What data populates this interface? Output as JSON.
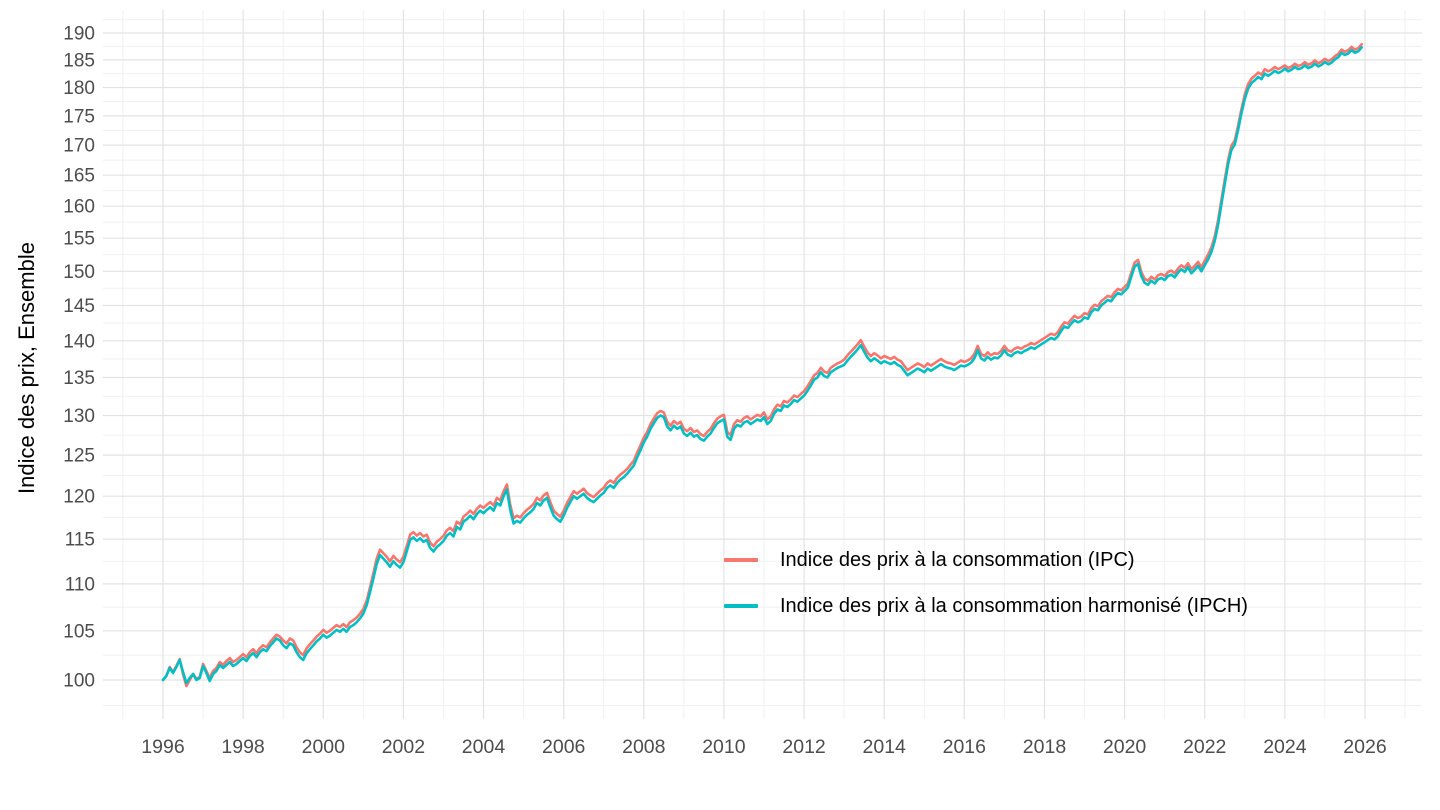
{
  "figure": {
    "y_axis_title": "Indice des prix, Ensemble",
    "colors": {
      "background": "#FFFFFF",
      "ipc": "#F8766D",
      "ipch": "#00BFC4",
      "grid_major": "#E3E3E3",
      "grid_minor": "#F1F1F1",
      "tick_label": "#4D4D4D",
      "axis_title": "#000000",
      "legend_text": "#000000"
    },
    "y_ticks": [
      100,
      105,
      110,
      115,
      120,
      125,
      130,
      135,
      140,
      145,
      150,
      155,
      160,
      165,
      170,
      175,
      180,
      185,
      190
    ],
    "x_ticks": [
      1996,
      1998,
      2000,
      2002,
      2004,
      2006,
      2008,
      2010,
      2012,
      2014,
      2016,
      2018,
      2020,
      2022,
      2024,
      2026
    ],
    "legend": {
      "items": [
        {
          "label": "Indice des prix à la consommation (IPC)",
          "color": "#F8766D"
        },
        {
          "label": "Indice des prix à la consommation harmonisé (IPCH)",
          "color": "#00BFC4"
        }
      ]
    }
  },
  "chart_data": {
    "type": "line",
    "title": "",
    "xlabel": "",
    "ylabel": "Indice des prix, Ensemble",
    "x_start_year": 1996,
    "x_frequency": "monthly",
    "x_range": [
      1996,
      2026
    ],
    "x_tick_step_years": 2,
    "y_scale": "log",
    "y_tick_values": [
      100,
      105,
      110,
      115,
      120,
      125,
      130,
      135,
      140,
      145,
      150,
      155,
      160,
      165,
      170,
      175,
      180,
      185,
      190
    ],
    "grid": "major-and-minor",
    "legend_position": "inside-center-right",
    "series": [
      {
        "name": "Indice des prix à la consommation (IPC)",
        "color": "#F8766D",
        "values": [
          100.0,
          100.4,
          101.3,
          100.8,
          101.4,
          102.1,
          100.6,
          99.4,
          100.0,
          100.6,
          100.1,
          100.3,
          101.6,
          100.9,
          100.2,
          100.9,
          101.2,
          101.8,
          101.5,
          101.9,
          102.2,
          101.8,
          102.0,
          102.3,
          102.6,
          102.3,
          102.8,
          103.1,
          102.7,
          103.2,
          103.5,
          103.3,
          103.8,
          104.2,
          104.6,
          104.4,
          104.0,
          103.7,
          104.2,
          104.0,
          103.3,
          102.8,
          102.5,
          103.2,
          103.6,
          104.0,
          104.4,
          104.7,
          105.1,
          104.8,
          105.0,
          105.3,
          105.6,
          105.4,
          105.7,
          105.4,
          105.9,
          106.1,
          106.4,
          106.8,
          107.3,
          108.2,
          109.6,
          111.2,
          112.8,
          113.8,
          113.4,
          113.0,
          112.5,
          113.1,
          112.7,
          112.4,
          113.0,
          114.2,
          115.5,
          115.8,
          115.4,
          115.7,
          115.3,
          115.5,
          114.6,
          114.2,
          114.7,
          115.0,
          115.4,
          116.0,
          116.3,
          115.9,
          117.0,
          116.7,
          117.6,
          117.9,
          118.3,
          117.9,
          118.5,
          118.9,
          118.6,
          119.0,
          119.3,
          118.9,
          119.8,
          119.5,
          120.6,
          121.4,
          119.0,
          117.4,
          117.7,
          117.5,
          118.0,
          118.4,
          118.7,
          119.1,
          119.8,
          119.5,
          120.1,
          120.4,
          119.3,
          118.3,
          117.9,
          117.6,
          118.3,
          119.2,
          119.9,
          120.6,
          120.3,
          120.6,
          120.9,
          120.4,
          120.1,
          119.9,
          120.3,
          120.7,
          121.0,
          121.6,
          121.9,
          121.6,
          122.2,
          122.6,
          122.9,
          123.3,
          123.8,
          124.3,
          125.3,
          126.2,
          127.2,
          127.9,
          128.9,
          129.6,
          130.3,
          130.6,
          130.4,
          129.2,
          128.7,
          129.3,
          128.9,
          129.2,
          128.3,
          128.0,
          128.4,
          127.9,
          128.1,
          127.6,
          127.4,
          127.9,
          128.3,
          129.0,
          129.6,
          129.9,
          130.1,
          127.9,
          127.5,
          128.9,
          129.4,
          129.2,
          129.7,
          129.9,
          129.5,
          129.8,
          130.1,
          129.9,
          130.4,
          129.5,
          129.9,
          130.8,
          131.4,
          131.2,
          131.9,
          131.7,
          132.1,
          132.6,
          132.4,
          132.8,
          133.2,
          133.8,
          134.5,
          135.3,
          135.6,
          136.3,
          135.8,
          135.6,
          136.3,
          136.6,
          136.9,
          137.1,
          137.4,
          138.0,
          138.5,
          139.0,
          139.5,
          140.1,
          139.2,
          138.4,
          137.9,
          138.3,
          138.0,
          137.6,
          137.9,
          137.7,
          137.5,
          137.8,
          137.4,
          137.2,
          136.6,
          136.0,
          136.3,
          136.6,
          136.9,
          136.7,
          136.4,
          136.9,
          136.6,
          136.9,
          137.2,
          137.5,
          137.2,
          137.0,
          136.9,
          136.7,
          137.0,
          137.3,
          137.1,
          137.3,
          137.6,
          138.2,
          139.3,
          138.2,
          137.9,
          138.4,
          138.0,
          138.3,
          138.2,
          138.6,
          139.3,
          138.7,
          138.5,
          138.9,
          139.1,
          138.9,
          139.2,
          139.4,
          139.7,
          139.5,
          139.8,
          140.1,
          140.4,
          140.7,
          141.0,
          140.8,
          141.2,
          142.0,
          142.6,
          142.4,
          143.0,
          143.5,
          143.2,
          143.4,
          143.9,
          143.7,
          144.6,
          145.1,
          144.9,
          145.6,
          146.0,
          146.4,
          146.2,
          146.9,
          147.4,
          147.2,
          147.7,
          148.2,
          149.8,
          151.3,
          151.7,
          149.9,
          148.9,
          148.6,
          149.2,
          148.8,
          149.4,
          149.6,
          149.3,
          149.9,
          150.1,
          149.7,
          150.4,
          150.9,
          150.5,
          151.2,
          150.3,
          150.8,
          151.4,
          150.6,
          151.6,
          152.5,
          153.6,
          155.3,
          157.8,
          161.0,
          164.3,
          167.5,
          169.9,
          170.8,
          173.3,
          176.2,
          178.8,
          180.6,
          181.6,
          182.1,
          182.7,
          182.3,
          183.3,
          182.9,
          183.2,
          183.7,
          183.3,
          183.6,
          184.0,
          183.5,
          183.8,
          184.3,
          183.9,
          184.1,
          184.6,
          184.1,
          184.4,
          184.9,
          184.4,
          184.7,
          185.2,
          184.8,
          185.1,
          185.7,
          186.1,
          186.9,
          186.5,
          186.8,
          187.4,
          186.9,
          187.2,
          187.9
        ]
      },
      {
        "name": "Indice des prix à la consommation harmonisé (IPCH)",
        "color": "#00BFC4",
        "values": [
          100.0,
          100.4,
          101.2,
          100.7,
          101.3,
          102.0,
          100.8,
          99.7,
          100.2,
          100.6,
          100.0,
          100.2,
          101.4,
          100.7,
          99.9,
          100.6,
          100.9,
          101.5,
          101.2,
          101.5,
          101.8,
          101.4,
          101.6,
          101.9,
          102.2,
          101.9,
          102.4,
          102.7,
          102.3,
          102.8,
          103.1,
          102.9,
          103.4,
          103.8,
          104.2,
          104.0,
          103.5,
          103.2,
          103.7,
          103.5,
          102.8,
          102.3,
          102.0,
          102.7,
          103.1,
          103.5,
          103.9,
          104.2,
          104.6,
          104.3,
          104.5,
          104.8,
          105.1,
          104.9,
          105.2,
          104.9,
          105.4,
          105.6,
          105.9,
          106.3,
          106.8,
          107.7,
          109.1,
          110.6,
          112.2,
          113.2,
          112.8,
          112.4,
          111.9,
          112.5,
          112.1,
          111.8,
          112.4,
          113.6,
          114.9,
          115.2,
          114.8,
          115.1,
          114.7,
          114.9,
          114.0,
          113.6,
          114.1,
          114.4,
          114.8,
          115.4,
          115.7,
          115.3,
          116.4,
          116.1,
          117.0,
          117.3,
          117.7,
          117.3,
          117.9,
          118.3,
          118.0,
          118.4,
          118.7,
          118.3,
          119.2,
          118.9,
          120.0,
          120.8,
          118.4,
          116.8,
          117.1,
          116.9,
          117.4,
          117.8,
          118.1,
          118.5,
          119.2,
          118.9,
          119.5,
          119.8,
          118.7,
          117.7,
          117.3,
          117.0,
          117.7,
          118.6,
          119.3,
          120.0,
          119.7,
          120.0,
          120.3,
          119.8,
          119.5,
          119.3,
          119.7,
          120.1,
          120.4,
          121.0,
          121.3,
          121.0,
          121.6,
          122.0,
          122.3,
          122.7,
          123.2,
          123.7,
          124.7,
          125.6,
          126.6,
          127.3,
          128.3,
          129.0,
          129.7,
          130.0,
          129.8,
          128.6,
          128.1,
          128.7,
          128.3,
          128.6,
          127.7,
          127.4,
          127.8,
          127.3,
          127.5,
          127.0,
          126.8,
          127.3,
          127.7,
          128.4,
          129.0,
          129.3,
          129.5,
          127.3,
          126.9,
          128.3,
          128.8,
          128.6,
          129.1,
          129.3,
          128.9,
          129.2,
          129.5,
          129.3,
          129.8,
          128.9,
          129.3,
          130.2,
          130.8,
          130.6,
          131.3,
          131.1,
          131.5,
          132.0,
          131.8,
          132.2,
          132.6,
          133.2,
          133.9,
          134.7,
          135.0,
          135.7,
          135.2,
          135.0,
          135.7,
          136.0,
          136.3,
          136.5,
          136.7,
          137.3,
          137.8,
          138.3,
          138.8,
          139.4,
          138.5,
          137.7,
          137.2,
          137.6,
          137.3,
          136.9,
          137.2,
          137.0,
          136.8,
          137.1,
          136.7,
          136.5,
          135.9,
          135.3,
          135.6,
          135.9,
          136.2,
          136.0,
          135.7,
          136.2,
          135.9,
          136.2,
          136.5,
          136.8,
          136.5,
          136.3,
          136.2,
          136.0,
          136.3,
          136.6,
          136.5,
          136.7,
          137.0,
          137.6,
          138.7,
          137.6,
          137.3,
          137.8,
          137.4,
          137.7,
          137.6,
          138.0,
          138.7,
          138.1,
          137.9,
          138.3,
          138.5,
          138.3,
          138.6,
          138.8,
          139.1,
          138.9,
          139.2,
          139.5,
          139.8,
          140.1,
          140.4,
          140.2,
          140.6,
          141.4,
          142.0,
          141.8,
          142.4,
          142.9,
          142.6,
          142.8,
          143.3,
          143.1,
          144.0,
          144.5,
          144.3,
          145.0,
          145.4,
          145.8,
          145.6,
          146.3,
          146.8,
          146.6,
          147.1,
          147.6,
          149.2,
          150.7,
          151.1,
          149.3,
          148.3,
          148.0,
          148.6,
          148.2,
          148.8,
          149.0,
          148.7,
          149.3,
          149.5,
          149.1,
          149.8,
          150.3,
          149.9,
          150.6,
          149.7,
          150.2,
          150.8,
          150.0,
          150.9,
          151.8,
          152.9,
          154.6,
          157.1,
          160.3,
          163.6,
          166.8,
          169.2,
          170.1,
          172.6,
          175.5,
          178.0,
          179.8,
          180.8,
          181.3,
          181.9,
          181.5,
          182.5,
          182.1,
          182.5,
          183.0,
          182.6,
          182.9,
          183.4,
          182.9,
          183.2,
          183.7,
          183.3,
          183.5,
          184.0,
          183.5,
          183.8,
          184.3,
          183.8,
          184.1,
          184.6,
          184.2,
          184.5,
          185.1,
          185.5,
          186.3,
          185.9,
          186.2,
          186.8,
          186.3,
          186.6,
          187.3
        ]
      }
    ]
  }
}
